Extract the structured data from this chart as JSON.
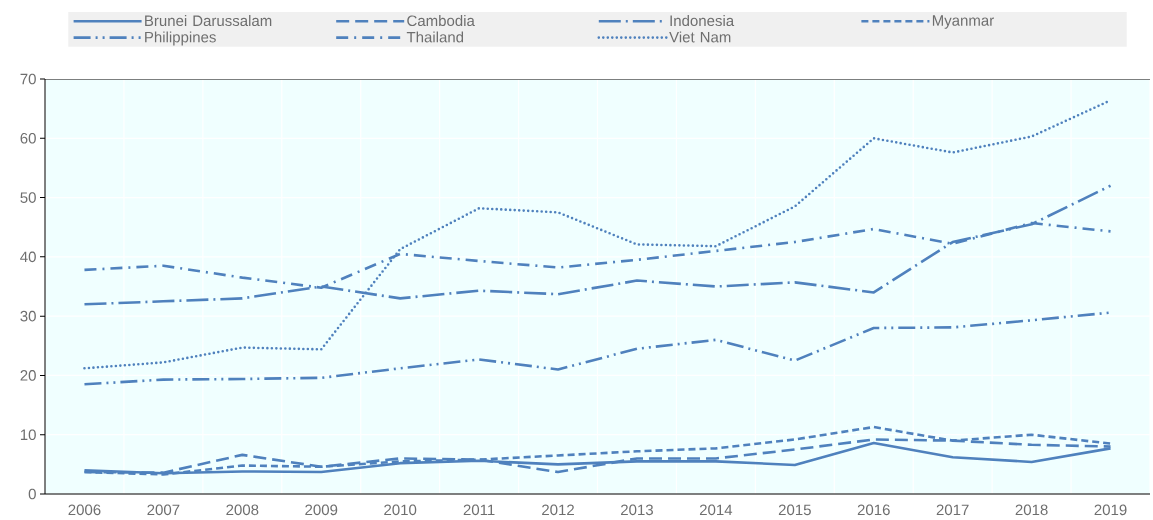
{
  "chart_data": {
    "type": "line",
    "categories": [
      "2006",
      "2007",
      "2008",
      "2009",
      "2010",
      "2011",
      "2012",
      "2013",
      "2014",
      "2015",
      "2016",
      "2017",
      "2018",
      "2019"
    ],
    "series": [
      {
        "name": "Brunei Darussalam",
        "color": "#4f81bd",
        "line_style": "solid",
        "values": [
          4.0,
          3.5,
          3.8,
          3.7,
          5.2,
          5.6,
          5.0,
          5.5,
          5.5,
          4.9,
          8.6,
          6.2,
          5.4,
          7.7
        ]
      },
      {
        "name": "Cambodia",
        "color": "#4f81bd",
        "line_style": "dashed",
        "values": [
          3.7,
          3.6,
          6.6,
          4.6,
          6.0,
          5.8,
          3.7,
          6.0,
          6.0,
          7.5,
          9.2,
          9.0,
          8.3,
          8.0
        ]
      },
      {
        "name": "Indonesia",
        "color": "#4f81bd",
        "line_style": "longdashdot",
        "values": [
          32.0,
          32.5,
          33.0,
          35.0,
          33.0,
          34.3,
          33.7,
          36.0,
          35.0,
          35.7,
          34.0,
          42.5,
          45.5,
          52.0
        ]
      },
      {
        "name": "Myanmar",
        "color": "#4f81bd",
        "line_style": "shortdashed",
        "values": [
          3.7,
          3.3,
          4.8,
          4.6,
          5.5,
          5.8,
          6.5,
          7.2,
          7.7,
          9.2,
          11.3,
          9.0,
          10.0,
          8.5
        ]
      },
      {
        "name": "Philippines",
        "color": "#4f81bd",
        "line_style": "dashdotdot",
        "values": [
          18.5,
          19.3,
          19.4,
          19.6,
          21.2,
          22.7,
          21.0,
          24.5,
          26.0,
          22.5,
          28.0,
          28.1,
          29.3,
          30.6
        ]
      },
      {
        "name": "Thailand",
        "color": "#4f81bd",
        "line_style": "dashdot",
        "values": [
          37.8,
          38.5,
          36.5,
          34.8,
          40.5,
          39.3,
          38.2,
          39.5,
          41.0,
          42.5,
          44.7,
          42.2,
          45.7,
          44.3
        ]
      },
      {
        "name": "Viet Nam",
        "color": "#4f81bd",
        "line_style": "dotted",
        "values": [
          21.2,
          22.2,
          24.7,
          24.4,
          41.3,
          48.2,
          47.5,
          42.1,
          41.8,
          48.5,
          60.0,
          57.6,
          60.3,
          66.4
        ]
      }
    ],
    "ylim": [
      0,
      70
    ],
    "yticks": [
      0,
      10,
      20,
      30,
      40,
      50,
      60,
      70
    ],
    "grid": true,
    "legend": "top"
  }
}
